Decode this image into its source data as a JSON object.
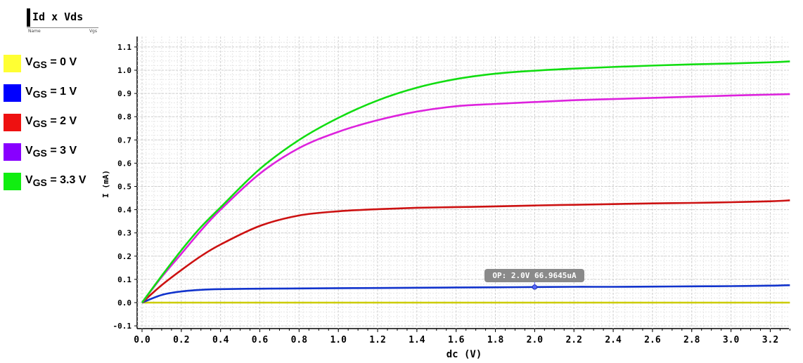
{
  "header": {
    "title": "Id x Vds",
    "sub_left": "Name",
    "sub_right": "Vgs"
  },
  "legend": [
    {
      "prefix": "V",
      "sub": "GS",
      "suffix": " = 0 V",
      "color": "#ffff33"
    },
    {
      "prefix": "V",
      "sub": "GS",
      "suffix": " = 1 V",
      "color": "#0000ff"
    },
    {
      "prefix": "V",
      "sub": "GS",
      "suffix": " = 2 V",
      "color": "#ee1111"
    },
    {
      "prefix": "V",
      "sub": "GS",
      "suffix": " = 3 V",
      "color": "#8800ff"
    },
    {
      "prefix": "V",
      "sub": "GS",
      "suffix": " = 3.3 V",
      "color": "#11ee11"
    }
  ],
  "chart_data": {
    "type": "line",
    "xlabel": "dc (V)",
    "ylabel": "I (mA)",
    "xlim": [
      0.0,
      3.3
    ],
    "ylim": [
      -0.1,
      1.13
    ],
    "xticks": [
      "0.0",
      "0.2",
      "0.4",
      "0.6",
      "0.8",
      "1.0",
      "1.2",
      "1.4",
      "1.6",
      "1.8",
      "2.0",
      "2.2",
      "2.4",
      "2.6",
      "2.8",
      "3.0",
      "3.2"
    ],
    "yticks": [
      "-0.1",
      "0.0",
      "0.1",
      "0.2",
      "0.3",
      "0.4",
      "0.5",
      "0.6",
      "0.7",
      "0.8",
      "0.9",
      "1.0",
      "1.1"
    ],
    "grid": true,
    "x": [
      0.0,
      0.1,
      0.2,
      0.3,
      0.4,
      0.6,
      0.8,
      1.0,
      1.2,
      1.4,
      1.6,
      1.8,
      2.0,
      2.2,
      2.4,
      2.6,
      2.8,
      3.0,
      3.2,
      3.3
    ],
    "series": [
      {
        "color": "#cccc00",
        "values": [
          0.0,
          0.0,
          0.0,
          0.0,
          0.0,
          0.0,
          0.0,
          0.0,
          0.0,
          0.0,
          0.0,
          0.0,
          0.0,
          0.0,
          0.0,
          0.0,
          0.0,
          0.0,
          0.0,
          0.0
        ]
      },
      {
        "color": "#1133cc",
        "values": [
          0.0,
          0.033,
          0.048,
          0.055,
          0.058,
          0.06,
          0.061,
          0.062,
          0.063,
          0.064,
          0.065,
          0.066,
          0.067,
          0.068,
          0.068,
          0.069,
          0.07,
          0.071,
          0.073,
          0.075
        ]
      },
      {
        "color": "#cc1111",
        "values": [
          0.0,
          0.075,
          0.14,
          0.2,
          0.25,
          0.33,
          0.375,
          0.393,
          0.402,
          0.408,
          0.411,
          0.414,
          0.418,
          0.421,
          0.424,
          0.427,
          0.429,
          0.432,
          0.436,
          0.44
        ]
      },
      {
        "color": "#dd22dd",
        "values": [
          0.0,
          0.11,
          0.21,
          0.31,
          0.4,
          0.555,
          0.665,
          0.735,
          0.785,
          0.822,
          0.845,
          0.855,
          0.863,
          0.871,
          0.876,
          0.881,
          0.886,
          0.891,
          0.895,
          0.897
        ]
      },
      {
        "color": "#11dd11",
        "values": [
          0.0,
          0.115,
          0.225,
          0.325,
          0.41,
          0.575,
          0.7,
          0.795,
          0.87,
          0.925,
          0.962,
          0.985,
          0.998,
          1.007,
          1.014,
          1.02,
          1.025,
          1.029,
          1.034,
          1.038
        ]
      }
    ],
    "annotation": {
      "text": "OP: 2.0V 66.9645uA",
      "x": 2.0,
      "y": 0.067
    }
  }
}
